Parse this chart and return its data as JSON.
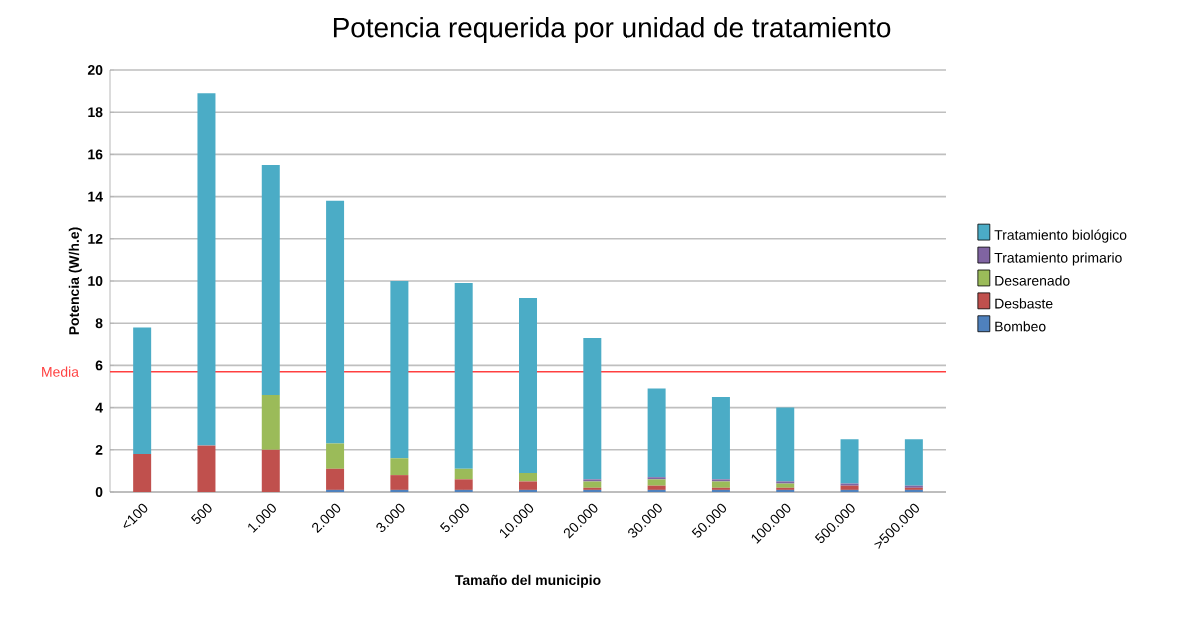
{
  "chart_data": {
    "type": "bar",
    "title": "Potencia requerida por unidad de tratamiento",
    "xlabel": "Tamaño del municipio",
    "ylabel": "Potencia  (W/h.e)",
    "categories": [
      "<100",
      "500",
      "1.000",
      "2.000",
      "3.000",
      "5.000",
      "10.000",
      "20.000",
      "30.000",
      "50.000",
      "100.000",
      "500.000",
      ">500.000"
    ],
    "stacked": true,
    "grid": "y",
    "legend": "right",
    "ylim": [
      0,
      20
    ],
    "yticks": [
      0,
      2,
      4,
      6,
      8,
      10,
      12,
      14,
      16,
      18,
      20
    ],
    "series": [
      {
        "name": "Bombeo",
        "color": "#4f81bd",
        "values": [
          0,
          0,
          0,
          0.1,
          0.1,
          0.1,
          0.1,
          0.1,
          0.1,
          0.1,
          0.1,
          0.1,
          0.1
        ]
      },
      {
        "name": "Desbaste",
        "color": "#c0504d",
        "values": [
          1.8,
          2.2,
          2.0,
          1.0,
          0.7,
          0.5,
          0.4,
          0.1,
          0.2,
          0.1,
          0.1,
          0.2,
          0.1
        ]
      },
      {
        "name": "Desarenado",
        "color": "#9bbb59",
        "values": [
          0,
          0,
          2.6,
          1.2,
          0.8,
          0.5,
          0.4,
          0.3,
          0.3,
          0.3,
          0.2,
          0,
          0
        ]
      },
      {
        "name": "Tratamiento primario",
        "color": "#8064a2",
        "values": [
          0,
          0,
          0,
          0,
          0,
          0,
          0,
          0.1,
          0.1,
          0.1,
          0.1,
          0.1,
          0.1
        ]
      },
      {
        "name": "Tratamiento biológico",
        "color": "#4bacc6",
        "values": [
          6.0,
          16.7,
          10.9,
          11.5,
          8.4,
          8.8,
          8.3,
          6.7,
          4.2,
          3.9,
          3.5,
          2.1,
          2.2
        ]
      }
    ],
    "ref_lines": [
      {
        "axis": "y",
        "value": 5.7,
        "label": "Media",
        "color": "#ff4040"
      }
    ]
  }
}
